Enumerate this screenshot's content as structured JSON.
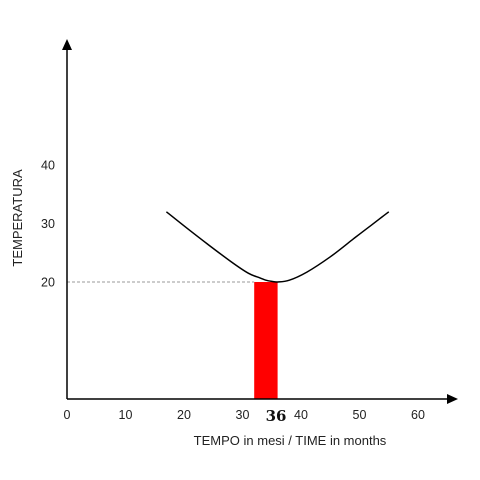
{
  "chart_data": {
    "type": "line",
    "xlabel": "TEMPO in mesi  / TIME in months",
    "ylabel": "TEMPERATURA",
    "xlim": [
      0,
      67
    ],
    "ylim": [
      0,
      53
    ],
    "x_ticks": [
      "0",
      "10",
      "20",
      "30",
      "40",
      "50",
      "60"
    ],
    "x_tick_values": [
      0,
      10,
      20,
      30,
      40,
      50,
      60
    ],
    "y_ticks": [
      "20",
      "30",
      "40"
    ],
    "y_tick_values": [
      20,
      30,
      40
    ],
    "grid": false,
    "series": [
      {
        "color": "#000000",
        "x": [
          17,
          20,
          24,
          28,
          31,
          33,
          34,
          35,
          36,
          38,
          41,
          45,
          49,
          52,
          55
        ],
        "y": [
          32,
          29.6,
          26.5,
          23.5,
          21.5,
          20.7,
          20.3,
          20.1,
          20,
          20.3,
          21.7,
          24.3,
          27.4,
          29.7,
          32
        ]
      }
    ],
    "highlight_band": {
      "x_start": 32,
      "x_end": 36,
      "y": 20,
      "color": "#ff0000"
    },
    "highlight_label": "36",
    "reference_line": {
      "y": 20,
      "x_start": 0,
      "x_end": 32,
      "style": "dashed",
      "color": "#999999"
    }
  }
}
